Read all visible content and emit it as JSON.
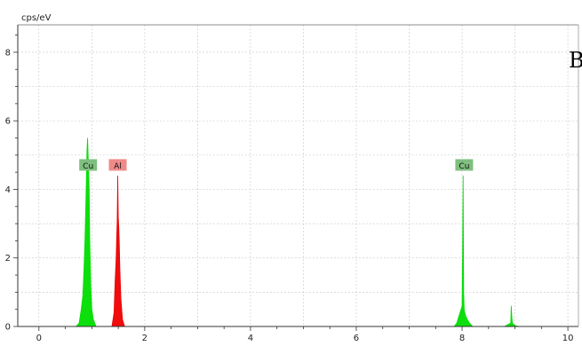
{
  "chart_data": {
    "type": "area",
    "title": "",
    "xlabel": "",
    "ylabel": "cps/eV",
    "xlim": [
      -0.4,
      10.2
    ],
    "ylim": [
      0,
      8.8
    ],
    "x_ticks": [
      "0",
      "2",
      "4",
      "6",
      "8",
      "10"
    ],
    "x_tick_values": [
      0,
      2,
      4,
      6,
      8,
      10
    ],
    "y_ticks": [
      "0",
      "2",
      "4",
      "6",
      "8"
    ],
    "y_tick_values": [
      0,
      2,
      4,
      6,
      8
    ],
    "grid": true,
    "annotation": "نقطه B",
    "peak_labels": [
      {
        "text": "Cu",
        "x": 0.93,
        "y": 4.7,
        "color": "#7fbf7f"
      },
      {
        "text": "Al",
        "x": 1.49,
        "y": 4.7,
        "color": "#f08a8a"
      },
      {
        "text": "Cu",
        "x": 8.04,
        "y": 4.7,
        "color": "#7fbf7f"
      }
    ],
    "series": [
      {
        "name": "Cu",
        "color": "#00dd00",
        "x": [
          0.7,
          0.76,
          0.8,
          0.83,
          0.85,
          0.87,
          0.89,
          0.91,
          0.92,
          0.93,
          0.94,
          0.95,
          0.96,
          0.98,
          1.0,
          1.03,
          1.08,
          7.85,
          7.9,
          7.94,
          7.98,
          8.0,
          8.01,
          8.02,
          8.03,
          8.04,
          8.05,
          8.07,
          8.1,
          8.14,
          8.2,
          8.8,
          8.86,
          8.9,
          8.92,
          8.93,
          8.94,
          8.95,
          8.96,
          8.98,
          9.02,
          9.08
        ],
        "y": [
          0.0,
          0.1,
          0.5,
          0.9,
          1.6,
          2.5,
          3.8,
          5.2,
          5.5,
          5.0,
          4.6,
          4.0,
          2.6,
          1.2,
          0.5,
          0.2,
          0.0,
          0.0,
          0.1,
          0.3,
          0.5,
          0.6,
          2.2,
          4.4,
          1.0,
          0.5,
          0.4,
          0.3,
          0.2,
          0.1,
          0.0,
          0.0,
          0.05,
          0.08,
          0.1,
          0.6,
          0.3,
          0.12,
          0.08,
          0.05,
          0.02,
          0.0
        ]
      },
      {
        "name": "Al",
        "color": "#ee0000",
        "x": [
          1.38,
          1.42,
          1.44,
          1.46,
          1.47,
          1.48,
          1.49,
          1.5,
          1.51,
          1.52,
          1.53,
          1.55,
          1.58,
          1.62
        ],
        "y": [
          0.0,
          0.4,
          1.3,
          2.0,
          2.6,
          3.1,
          4.4,
          3.2,
          2.9,
          2.4,
          1.7,
          0.8,
          0.2,
          0.0
        ]
      }
    ]
  }
}
